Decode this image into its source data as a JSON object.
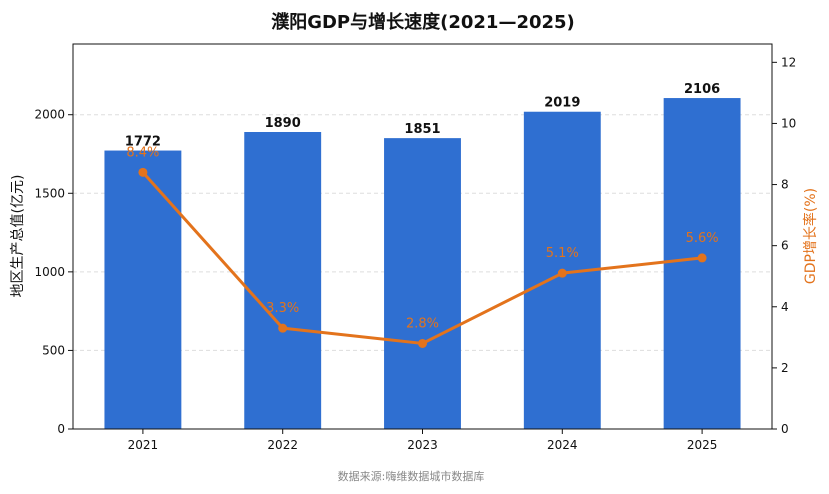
{
  "chart_data": {
    "type": "bar+line",
    "title": "濮阳GDP与增长速度(2021—2025)",
    "categories": [
      "2021",
      "2022",
      "2023",
      "2024",
      "2025"
    ],
    "series": [
      {
        "type": "bar",
        "axis": "left",
        "values": [
          1772,
          1890,
          1851,
          2019,
          2106
        ],
        "labels": [
          "1772",
          "1890",
          "1851",
          "2019",
          "2106"
        ],
        "color": "#2f6fd1"
      },
      {
        "type": "line",
        "axis": "right",
        "values": [
          8.4,
          3.3,
          2.8,
          5.1,
          5.6
        ],
        "labels": [
          "8.4%",
          "3.3%",
          "2.8%",
          "5.1%",
          "5.6%"
        ],
        "color": "#e3731c"
      }
    ],
    "ylabel_left": "地区生产总值(亿元)",
    "ylabel_right": "GDP增长率(%)",
    "ylim_left": [
      0,
      2450
    ],
    "yticks_left": [
      0,
      500,
      1000,
      1500,
      2000
    ],
    "ylim_right": [
      0,
      12.6
    ],
    "yticks_right": [
      0,
      2,
      4,
      6,
      8,
      10,
      12
    ],
    "grid": "horizontal-dashed",
    "source": "数据来源:嗨维数据城市数据库"
  }
}
